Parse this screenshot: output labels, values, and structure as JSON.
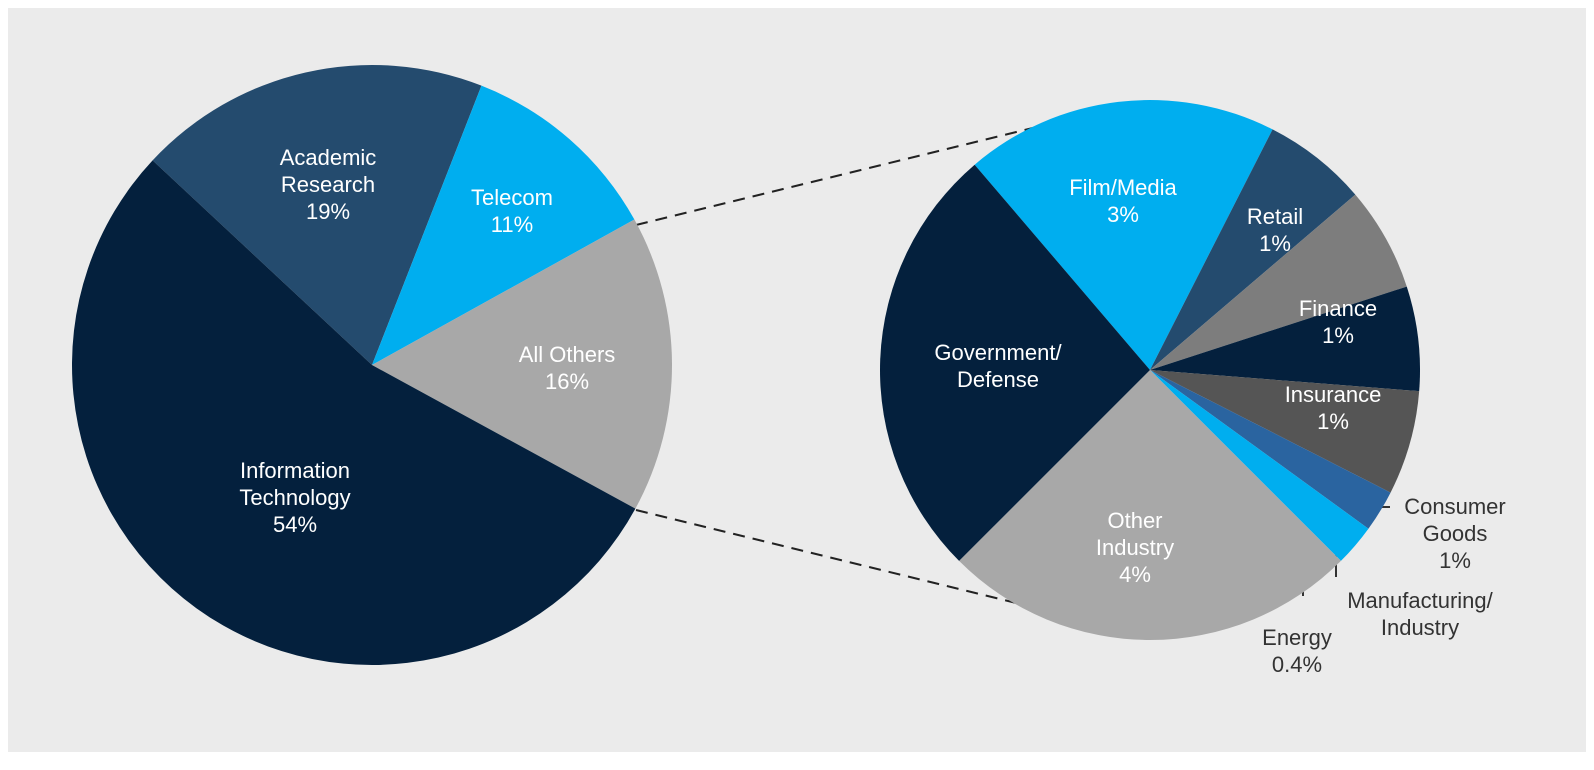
{
  "chart_data": [
    {
      "type": "pie",
      "categories": [
        "Academic\nResearch",
        "Telecom",
        "All Others",
        "Information\nTechnology"
      ],
      "values": [
        19,
        11,
        16,
        54
      ],
      "value_labels": [
        "19%",
        "11%",
        "16%",
        "54%"
      ],
      "colors": [
        "#244b6e",
        "#00aeef",
        "#a8a8a8",
        "#04203d"
      ]
    },
    {
      "type": "pie",
      "categories": [
        "Film/Media",
        "Retail",
        "Finance",
        "Insurance",
        "Consumer\nGoods",
        "Manufacturing/\nIndustry",
        "Energy",
        "Other\nIndustry",
        "Government/\nDefense"
      ],
      "values": [
        3,
        1,
        1,
        1,
        1,
        0.4,
        0.4,
        4,
        4.2
      ],
      "value_labels": [
        "3%",
        "1%",
        "1%",
        "1%",
        "1%",
        null,
        "0.4%",
        "4%",
        null
      ],
      "colors": [
        "#00aeef",
        "#244b6e",
        "#7d7d7d",
        "#04203d",
        "#555555",
        "#2a64a0",
        "#00aeef",
        "#a8a8a8",
        "#04203d"
      ]
    }
  ]
}
